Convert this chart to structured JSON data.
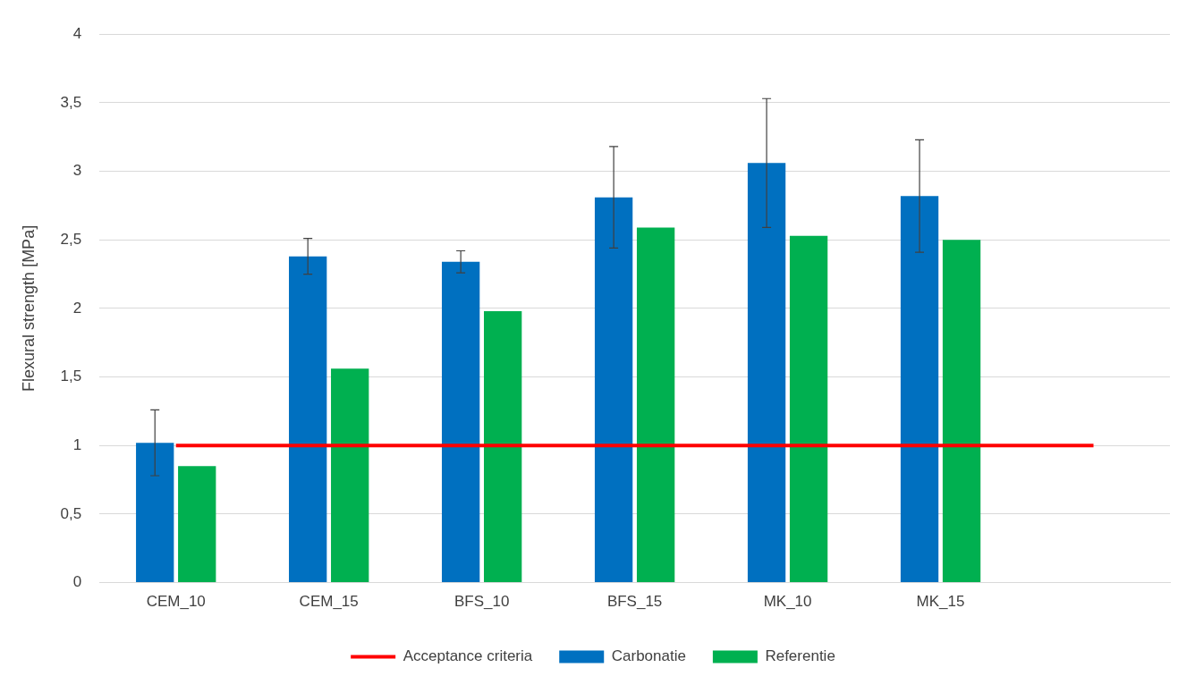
{
  "chart_data": {
    "type": "bar",
    "ylabel": "Flexural strength [MPa]",
    "categories": [
      "CEM_10",
      "CEM_15",
      "BFS_10",
      "BFS_15",
      "MK_10",
      "MK_15",
      null
    ],
    "series": [
      {
        "name": "Carbonatie",
        "color": "#0070c0",
        "values": [
          1.02,
          2.38,
          2.34,
          2.81,
          3.06,
          2.82,
          null
        ],
        "errors": [
          0.24,
          0.13,
          0.08,
          0.37,
          0.47,
          0.41,
          null
        ]
      },
      {
        "name": "Referentie",
        "color": "#00b050",
        "values": [
          0.85,
          1.56,
          1.98,
          2.59,
          2.53,
          2.5,
          null
        ]
      },
      {
        "name": "Acceptance criteria",
        "type": "line",
        "color": "#ff0000",
        "values": [
          1,
          1,
          1,
          1,
          1,
          1,
          1
        ],
        "marker": "none"
      }
    ],
    "ylim": [
      0,
      4
    ],
    "yticks": [
      0,
      {
        "value": 0.5,
        "label": "0,5"
      },
      1,
      {
        "value": 1.5,
        "label": "1,5"
      },
      2,
      {
        "value": 2.5,
        "label": "2,5"
      },
      3,
      {
        "value": 3.5,
        "label": "3,5"
      },
      4
    ],
    "grid": "y",
    "legend": "bottom"
  }
}
